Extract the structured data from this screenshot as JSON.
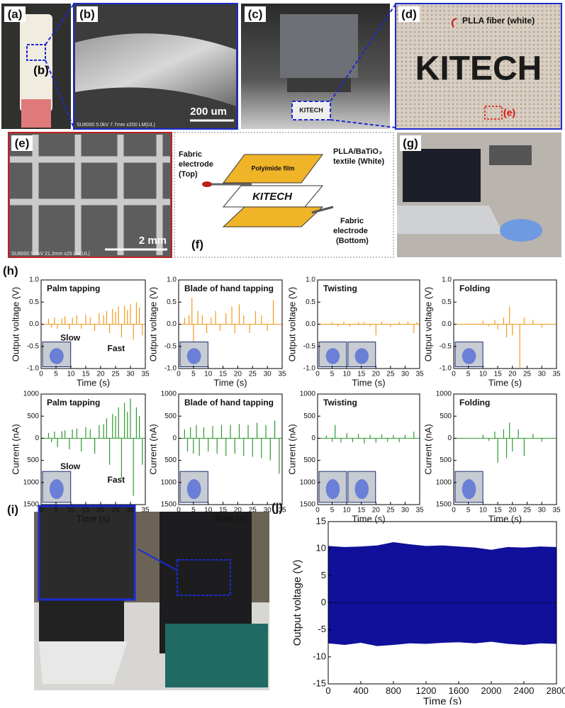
{
  "panels": {
    "a": {
      "label": "(a)",
      "inset": "(b)"
    },
    "b": {
      "label": "(b)",
      "scale": "200 um",
      "info": "SU8000 5.0kV 7.7mm x200 LM(UL)"
    },
    "c": {
      "label": "(c)",
      "sign": "KITECH"
    },
    "d": {
      "label": "(d)",
      "note": "PLLA fiber (white)",
      "logo": "KITECH",
      "marker": "(e)"
    },
    "e": {
      "label": "(e)",
      "scale": "2 mm",
      "info": "SU8000 5.0kV 21.2mm x25 LM(UL)"
    },
    "f": {
      "label": "(f)",
      "film": "Polyimide film",
      "top": [
        "Fabric",
        "electrode",
        "(Top)"
      ],
      "textile": [
        "PLLA/BaTiO₃",
        "textile (White)"
      ],
      "logo": "KITECH",
      "bottom": [
        "Fabric",
        "electrode",
        "(Bottom)"
      ]
    },
    "g": {
      "label": "(g)"
    },
    "h": {
      "label": "(h)"
    },
    "i": {
      "label": "(i)"
    },
    "j": {
      "label": "(j)"
    }
  },
  "chart_data": [
    {
      "type": "spike",
      "title": "Palm tapping",
      "annotations": [
        "Slow",
        "Fast"
      ],
      "xlabel": "Time (s)",
      "ylabel": "Output voltage (V)",
      "xlim": [
        0,
        35
      ],
      "ylim": [
        -1,
        1
      ],
      "xticks": [
        0,
        5,
        10,
        15,
        20,
        25,
        30,
        35
      ],
      "yticks": [
        {
          "value": -1,
          "label": "-1.0"
        },
        -0.5,
        {
          "value": 0,
          "label": "0.0"
        },
        0.5,
        {
          "value": 1,
          "label": "1.0"
        }
      ],
      "x": [
        2.5,
        3.5,
        4.5,
        5.5,
        7,
        8,
        9.5,
        10.5,
        12,
        13.5,
        15,
        16.5,
        18,
        19.5,
        21,
        22,
        23,
        24,
        25,
        26,
        27,
        28,
        29,
        30,
        31,
        32,
        33,
        34
      ],
      "series": [
        {
          "color": "#f39a1e",
          "values": [
            0.12,
            -0.08,
            0.15,
            -0.1,
            0.13,
            0.18,
            -0.12,
            0.15,
            0.2,
            -0.1,
            0.22,
            0.16,
            -0.15,
            0.25,
            0.2,
            0.3,
            -0.2,
            0.35,
            0.28,
            0.4,
            -0.3,
            0.42,
            0.32,
            0.45,
            -0.35,
            0.5,
            0.38,
            -0.25
          ]
        }
      ]
    },
    {
      "type": "spike",
      "title": "Blade of hand tapping",
      "xlabel": "Time (s)",
      "ylabel": "Output voltage (V)",
      "xlim": [
        0,
        35
      ],
      "ylim": [
        -1,
        1
      ],
      "xticks": [
        0,
        5,
        10,
        15,
        20,
        25,
        30,
        35
      ],
      "yticks": [
        {
          "value": -1,
          "label": "-1.0"
        },
        -0.5,
        {
          "value": 0,
          "label": "0.0"
        },
        0.5,
        {
          "value": 1,
          "label": "1.0"
        }
      ],
      "x": [
        2,
        3.5,
        4.5,
        5,
        6.5,
        8,
        9.5,
        11,
        12.5,
        14,
        16,
        18,
        19,
        20.5,
        22,
        24,
        26,
        28,
        30,
        32
      ],
      "series": [
        {
          "color": "#f39a1e",
          "values": [
            0.15,
            0.2,
            0.6,
            -0.4,
            0.3,
            0.2,
            -0.2,
            0.15,
            0.3,
            -0.15,
            0.25,
            0.4,
            -0.2,
            0.45,
            0.2,
            -0.2,
            0.3,
            0.2,
            -0.15,
            0.55
          ]
        }
      ]
    },
    {
      "type": "spike",
      "title": "Twisting",
      "xlabel": "Time (s)",
      "ylabel": "Output voltage (V)",
      "xlim": [
        0,
        35
      ],
      "ylim": [
        -1,
        1
      ],
      "xticks": [
        0,
        5,
        10,
        15,
        20,
        25,
        30,
        35
      ],
      "yticks": [
        {
          "value": -1,
          "label": "-1.0"
        },
        -0.5,
        {
          "value": 0,
          "label": "0.0"
        },
        0.5,
        {
          "value": 1,
          "label": "1.0"
        }
      ],
      "x": [
        5,
        7,
        9,
        11,
        14,
        16,
        18,
        20,
        22,
        25,
        28,
        31,
        33,
        34
      ],
      "series": [
        {
          "color": "#f39a1e",
          "values": [
            0.05,
            -0.05,
            0.06,
            -0.06,
            0.05,
            0.05,
            -0.05,
            -0.25,
            0.06,
            -0.06,
            0.05,
            0.06,
            -0.2,
            0.05
          ]
        }
      ]
    },
    {
      "type": "spike",
      "title": "Folding",
      "xlabel": "Time (s)",
      "ylabel": "Output voltage (V)",
      "xlim": [
        0,
        35
      ],
      "ylim": [
        -1,
        1
      ],
      "xticks": [
        0,
        5,
        10,
        15,
        20,
        25,
        30,
        35
      ],
      "yticks": [
        {
          "value": -1,
          "label": "-1.0"
        },
        -0.5,
        {
          "value": 0,
          "label": "0.0"
        },
        0.5,
        {
          "value": 1,
          "label": "1.0"
        }
      ],
      "x": [
        10,
        12,
        14,
        15,
        17,
        18,
        19,
        20,
        22.5,
        24,
        27,
        30
      ],
      "series": [
        {
          "color": "#f39a1e",
          "values": [
            0.08,
            -0.05,
            0.1,
            -0.12,
            0.15,
            -0.3,
            0.4,
            -0.25,
            -0.98,
            0.15,
            0.1,
            -0.08
          ]
        }
      ]
    },
    {
      "type": "spike",
      "title": "Palm tapping",
      "annotations": [
        "Slow",
        "Fast"
      ],
      "xlabel": "Time (s)",
      "ylabel": "Current (nA)",
      "xlim": [
        0,
        35
      ],
      "ylim": [
        -1500,
        1000
      ],
      "xticks": [
        0,
        5,
        10,
        15,
        20,
        25,
        30,
        35
      ],
      "yticks": [
        {
          "value": -1500,
          "label": "1500"
        },
        {
          "value": -1000,
          "label": "1000"
        },
        {
          "value": -500,
          "label": "500"
        },
        0,
        500,
        1000
      ],
      "x": [
        2.5,
        3.5,
        4.5,
        5.5,
        7,
        8,
        9.5,
        10.5,
        12,
        13.5,
        15,
        16.5,
        18,
        19.5,
        21,
        22,
        23,
        24,
        25,
        26,
        27,
        28,
        29,
        30,
        31,
        32,
        33,
        34
      ],
      "series": [
        {
          "color": "#2e9a2e",
          "values": [
            120,
            -90,
            150,
            -200,
            160,
            180,
            -250,
            200,
            220,
            -300,
            250,
            200,
            -350,
            300,
            320,
            450,
            -600,
            550,
            500,
            700,
            -900,
            800,
            600,
            900,
            -1300,
            700,
            500,
            -600
          ]
        }
      ]
    },
    {
      "type": "spike",
      "title": "Blade of hand tapping",
      "xlabel": "Time (s)",
      "ylabel": "Current (nA)",
      "xlim": [
        0,
        35
      ],
      "ylim": [
        -1500,
        1000
      ],
      "xticks": [
        0,
        5,
        10,
        15,
        20,
        25,
        30,
        35
      ],
      "yticks": [
        {
          "value": -1500,
          "label": "1500"
        },
        {
          "value": -1000,
          "label": "1000"
        },
        {
          "value": -500,
          "label": "500"
        },
        0,
        500,
        1000
      ],
      "x": [
        2,
        3,
        4,
        5,
        6,
        7,
        8.5,
        10,
        11.5,
        13,
        14.5,
        16,
        17.5,
        19,
        20.5,
        22,
        23.5,
        25,
        26.5,
        28,
        29.5,
        31,
        32.5,
        34
      ],
      "series": [
        {
          "color": "#2e9a2e",
          "values": [
            200,
            -300,
            250,
            -350,
            300,
            -400,
            250,
            -300,
            280,
            -350,
            300,
            -400,
            300,
            -350,
            320,
            -400,
            300,
            -420,
            350,
            -450,
            300,
            -500,
            400,
            -800
          ]
        }
      ]
    },
    {
      "type": "spike",
      "title": "Twisting",
      "xlabel": "Time (s)",
      "ylabel": "Current (nA)",
      "xlim": [
        0,
        35
      ],
      "ylim": [
        -1500,
        1000
      ],
      "xticks": [
        0,
        5,
        10,
        15,
        20,
        25,
        30,
        35
      ],
      "yticks": [
        {
          "value": -1500,
          "label": "1500"
        },
        {
          "value": -1000,
          "label": "1000"
        },
        {
          "value": -500,
          "label": "500"
        },
        0,
        500,
        1000
      ],
      "x": [
        3,
        5,
        6,
        8,
        10,
        12,
        14,
        16,
        18,
        20,
        22,
        24,
        26,
        28,
        30,
        33
      ],
      "series": [
        {
          "color": "#2e9a2e",
          "values": [
            60,
            -80,
            300,
            -100,
            120,
            -90,
            100,
            -120,
            80,
            -100,
            90,
            -80,
            70,
            -90,
            80,
            150
          ]
        }
      ]
    },
    {
      "type": "spike",
      "title": "Folding",
      "xlabel": "Time (s)",
      "ylabel": "Current (nA)",
      "xlim": [
        0,
        35
      ],
      "ylim": [
        -1500,
        1000
      ],
      "xticks": [
        0,
        5,
        10,
        15,
        20,
        25,
        30,
        35
      ],
      "yticks": [
        {
          "value": -1500,
          "label": "1500"
        },
        {
          "value": -1000,
          "label": "1000"
        },
        {
          "value": -500,
          "label": "500"
        },
        0,
        500,
        1000
      ],
      "x": [
        10,
        12,
        14,
        15,
        17,
        18,
        19,
        20,
        22,
        24,
        27,
        30
      ],
      "series": [
        {
          "color": "#2e9a2e",
          "values": [
            80,
            -60,
            150,
            -550,
            200,
            -450,
            350,
            -300,
            200,
            -400,
            100,
            -80
          ]
        }
      ]
    },
    {
      "type": "band",
      "xlabel": "Time (s)",
      "ylabel": "Output voltage (V)",
      "xlim": [
        0,
        2800
      ],
      "ylim": [
        -15,
        15
      ],
      "xticks": [
        0,
        400,
        800,
        1200,
        1600,
        2000,
        2400,
        2800
      ],
      "yticks": [
        -15,
        -10,
        -5,
        0,
        5,
        10,
        15
      ],
      "x": [
        0,
        200,
        400,
        600,
        800,
        1000,
        1200,
        1400,
        1600,
        1800,
        2000,
        2200,
        2400,
        2600,
        2800
      ],
      "series": [
        {
          "color": "#10109a",
          "values": [
            10.5,
            10.3,
            10.4,
            10.6,
            11.2,
            10.8,
            10.5,
            10.6,
            10.4,
            10.2,
            9.8,
            10.3,
            10.2,
            10.4,
            10.3
          ]
        },
        {
          "color": "#10109a",
          "values": [
            -7.5,
            -7.8,
            -7.4,
            -8.0,
            -7.8,
            -7.5,
            -7.6,
            -7.4,
            -7.3,
            -7.5,
            -7.2,
            -7.6,
            -7.8,
            -7.5,
            -7.6
          ]
        }
      ]
    }
  ]
}
